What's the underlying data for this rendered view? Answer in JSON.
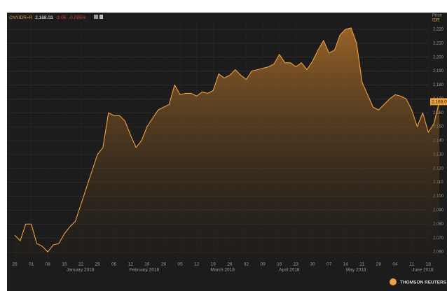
{
  "chart_data": {
    "type": "area",
    "ticker": "CNYIDR=R",
    "price": "2,168.03",
    "change": "-2.06",
    "change_pct": "-0.095%",
    "y_axis_label": "Price",
    "y_axis_unit": "IDR",
    "source": "THOMSON REUTERS",
    "color": "#f0a040",
    "categories": [
      "25",
      null,
      null,
      "01",
      null,
      null,
      "08",
      null,
      null,
      "15",
      null,
      null,
      "22",
      null,
      null,
      "29",
      null,
      null,
      "05",
      null,
      null,
      "12",
      null,
      null,
      "19",
      null,
      null,
      "26",
      null,
      null,
      "05",
      null,
      null,
      "12",
      null,
      null,
      "19",
      null,
      null,
      "26",
      null,
      null,
      "02",
      null,
      null,
      "09",
      null,
      null,
      "16",
      null,
      null,
      "23",
      null,
      null,
      "30",
      null,
      null,
      "07",
      null,
      null,
      "14",
      null,
      null,
      "21",
      null,
      null,
      "28",
      null,
      null,
      "04",
      null,
      null,
      "11",
      null,
      null,
      "18",
      null,
      null
    ],
    "values": [
      2072,
      2068,
      2080,
      2080,
      2066,
      2064,
      2060,
      2065,
      2066,
      2073,
      2078,
      2082,
      2094,
      2106,
      2118,
      2130,
      2135,
      2160,
      2158,
      2158,
      2154,
      2144,
      2135,
      2140,
      2150,
      2156,
      2162,
      2164,
      2166,
      2180,
      2173,
      2174,
      2174,
      2172,
      2175,
      2174,
      2176,
      2188,
      2185,
      2187,
      2191,
      2187,
      2184,
      2190,
      2191,
      2192,
      2193,
      2195,
      2202,
      2196,
      2196,
      2193,
      2196,
      2191,
      2197,
      2205,
      2212,
      2203,
      2205,
      2216,
      2220,
      2221,
      2210,
      2182,
      2173,
      2164,
      2162,
      2166,
      2170,
      2173,
      2172,
      2170,
      2162,
      2150,
      2160,
      2146,
      2152,
      2168
    ],
    "month_labels": [
      "January 2018",
      "February 2018",
      "March 2018",
      "April 2018",
      "May 2018",
      "June 2018"
    ],
    "ylim": [
      2055,
      2225
    ],
    "yticks": [
      {
        "value": 2060,
        "label": "2,060"
      },
      {
        "value": 2070,
        "label": "2,070"
      },
      {
        "value": 2080,
        "label": "2,080"
      },
      {
        "value": 2090,
        "label": "2,090"
      },
      {
        "value": 2100,
        "label": "2,100"
      },
      {
        "value": 2110,
        "label": "2,110"
      },
      {
        "value": 2120,
        "label": "2,120"
      },
      {
        "value": 2130,
        "label": "2,130"
      },
      {
        "value": 2140,
        "label": "2,140"
      },
      {
        "value": 2150,
        "label": "2,150"
      },
      {
        "value": 2160,
        "label": "2,160"
      },
      {
        "value": 2170,
        "label": "2,170"
      },
      {
        "value": 2180,
        "label": "2,180"
      },
      {
        "value": 2190,
        "label": "2,190"
      },
      {
        "value": 2200,
        "label": "2,200"
      },
      {
        "value": 2210,
        "label": "2,210"
      },
      {
        "value": 2220,
        "label": "2,220"
      }
    ],
    "grid": true
  }
}
